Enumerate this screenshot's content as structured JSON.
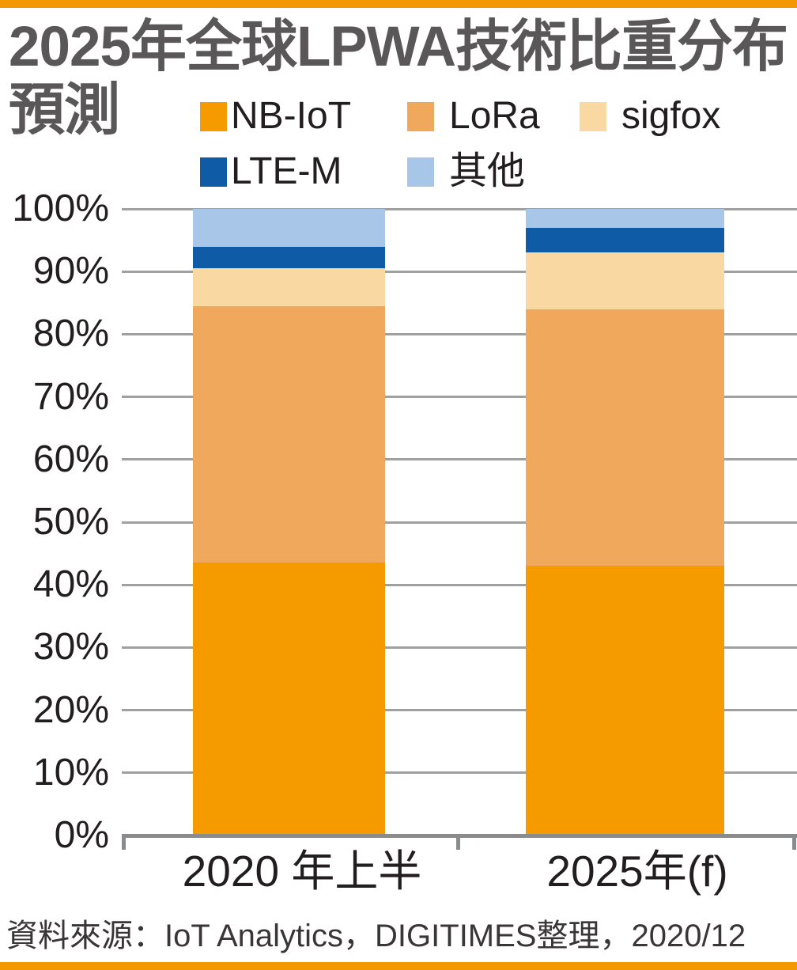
{
  "page": {
    "title_line1": "2025年全球LPWA技術比重分布",
    "title_line2": "預測",
    "source_note": "資料來源：IoT Analytics，DIGITIMES整理，2020/12",
    "accent_color": "#F39800"
  },
  "legend": {
    "items": [
      {
        "label": "NB-IoT",
        "color": "#F59B00"
      },
      {
        "label": "LoRa",
        "color": "#F0A95C"
      },
      {
        "label": "sigfox",
        "color": "#FAD8A2"
      },
      {
        "label": "LTE-M",
        "color": "#0F5BA6"
      },
      {
        "label": "其他",
        "color": "#A8C7E8"
      }
    ]
  },
  "chart_data": {
    "type": "bar",
    "stacked": true,
    "title": "2025年全球LPWA技術比重分布預測",
    "categories": [
      "2020 年上半",
      "2025年(f)"
    ],
    "series": [
      {
        "name": "NB-IoT",
        "color": "#F59B00",
        "values": [
          43.5,
          43
        ]
      },
      {
        "name": "LoRa",
        "color": "#F0A95C",
        "values": [
          41,
          41
        ]
      },
      {
        "name": "sigfox",
        "color": "#FAD8A2",
        "values": [
          6,
          9
        ]
      },
      {
        "name": "LTE-M",
        "color": "#0F5BA6",
        "values": [
          3.5,
          4
        ]
      },
      {
        "name": "其他",
        "color": "#A8C7E8",
        "values": [
          6,
          3
        ]
      }
    ],
    "unit": "%",
    "ylim": [
      0,
      100
    ],
    "y_ticks": [
      "0%",
      "10%",
      "20%",
      "30%",
      "40%",
      "50%",
      "60%",
      "70%",
      "80%",
      "90%",
      "100%"
    ],
    "grid": true,
    "legend_position": "top",
    "source": "資料來源：IoT Analytics，DIGITIMES整理，2020/12"
  }
}
